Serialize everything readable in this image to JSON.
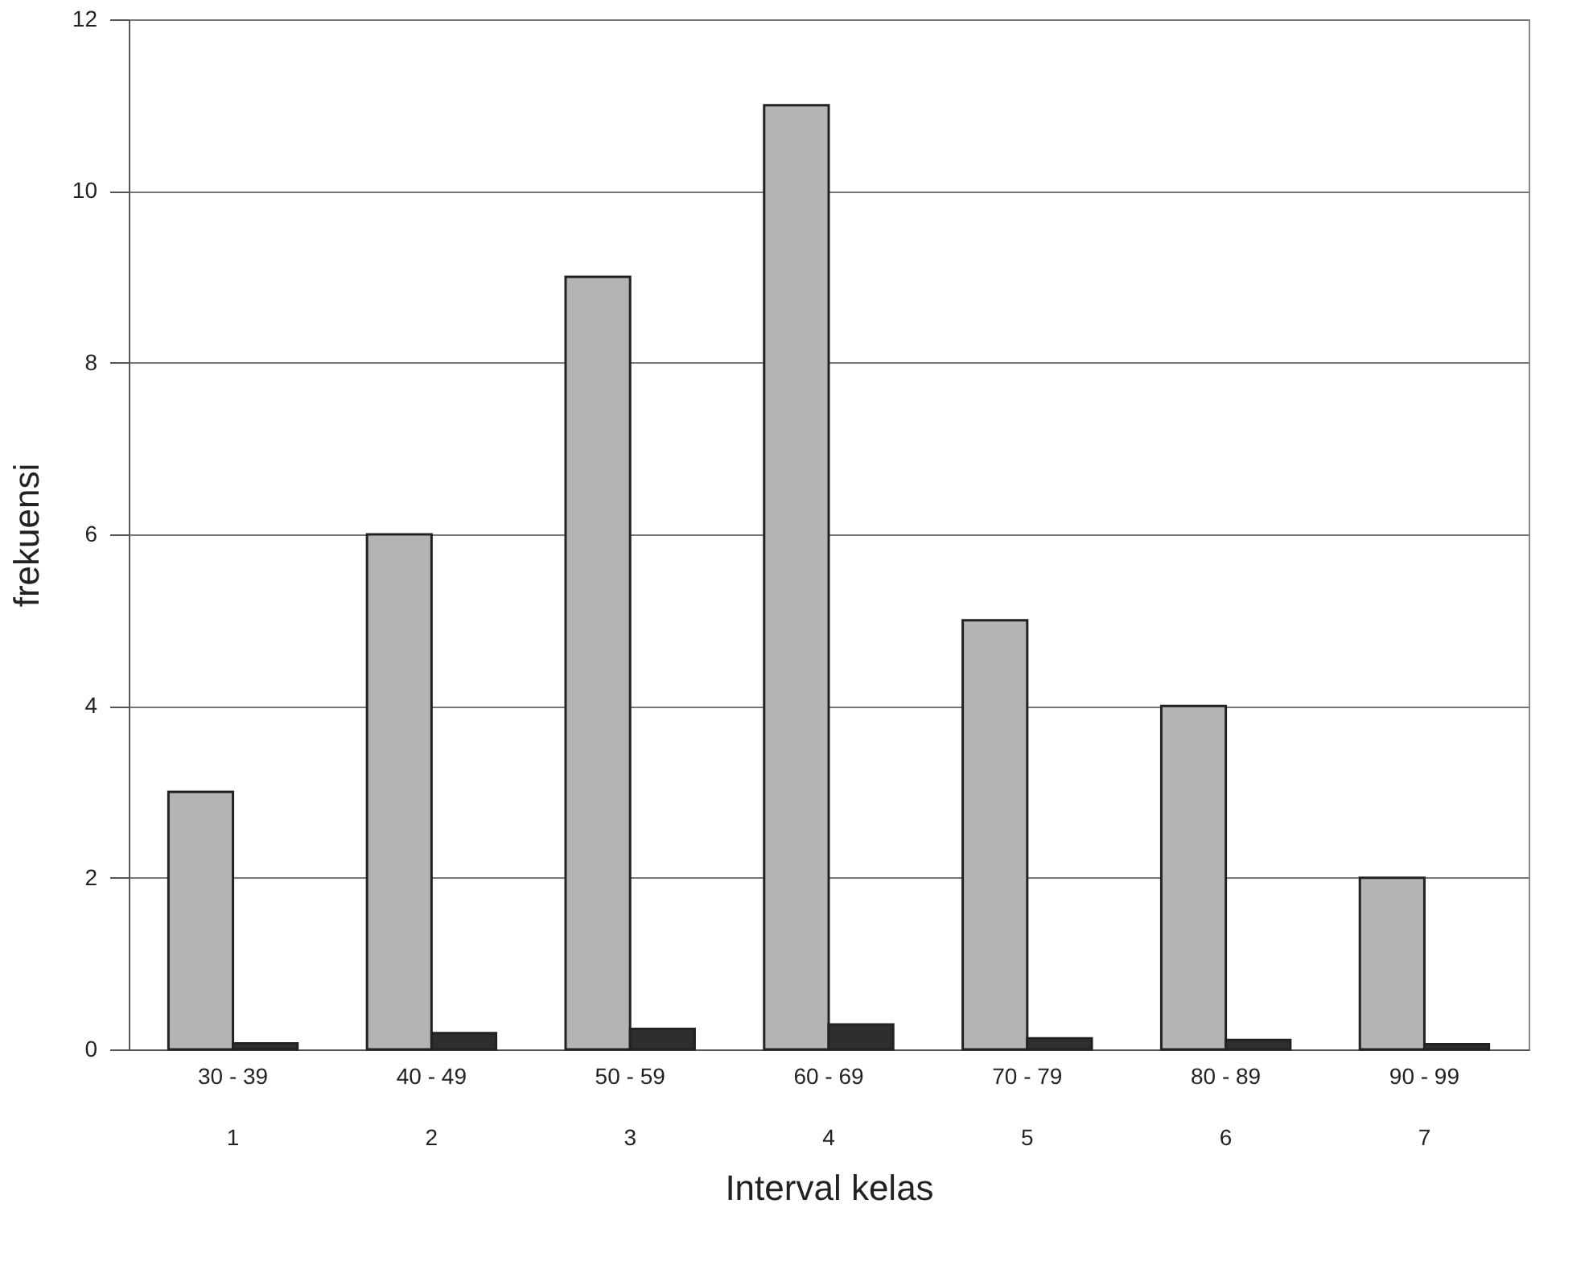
{
  "chart_data": {
    "type": "bar",
    "xlabel": "Interval kelas",
    "ylabel": "frekuensi",
    "categories": [
      "30 - 39\n1",
      "40 - 49\n2",
      "50 - 59\n3",
      "60 - 69\n4",
      "70 - 79\n5",
      "80 - 89\n6",
      "90 - 99\n7"
    ],
    "series": [
      {
        "color": "#b4b4b4",
        "values": [
          3,
          6,
          9,
          11,
          5,
          4,
          2
        ]
      },
      {
        "color": "#2e2e2e",
        "values": [
          0.07,
          0.19,
          0.24,
          0.29,
          0.13,
          0.11,
          0.06
        ]
      }
    ],
    "ylim": [
      0,
      12
    ],
    "yticks": [
      0,
      2,
      4,
      6,
      8,
      10,
      12
    ],
    "grid": "y"
  }
}
